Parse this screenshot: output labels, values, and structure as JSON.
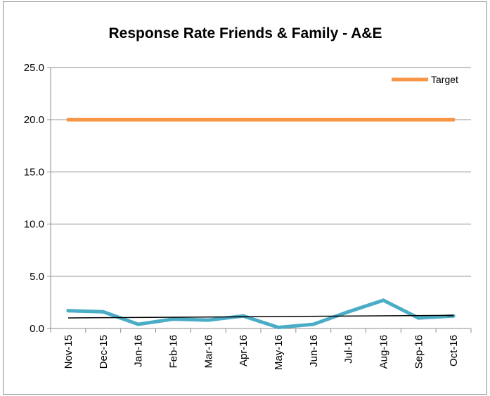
{
  "chart_data": {
    "type": "line",
    "title": "Response Rate Friends & Family - A&E",
    "xlabel": "",
    "ylabel": "",
    "categories": [
      "Nov-15",
      "Dec-15",
      "Jan-16",
      "Feb-16",
      "Mar-16",
      "Apr-16",
      "May-16",
      "Jun-16",
      "Jul-16",
      "Aug-16",
      "Sep-16",
      "Oct-16"
    ],
    "ylim": [
      0,
      25
    ],
    "yticks": [
      "0.0",
      "5.0",
      "10.0",
      "15.0",
      "20.0",
      "25.0"
    ],
    "grid": true,
    "legend": {
      "placement": "top-right",
      "entries": [
        "Target"
      ]
    },
    "series": [
      {
        "values": [
          1.7,
          1.6,
          0.4,
          0.9,
          0.8,
          1.2,
          0.1,
          0.4,
          1.6,
          2.7,
          1.0,
          1.2
        ],
        "color": "#4bacc6"
      },
      {
        "name": "Target",
        "values": [
          20,
          20,
          20,
          20,
          20,
          20,
          20,
          20,
          20,
          20,
          20,
          20
        ],
        "color": "#f79646"
      }
    ],
    "trendline": {
      "type": "linear",
      "color": "#000000"
    }
  }
}
